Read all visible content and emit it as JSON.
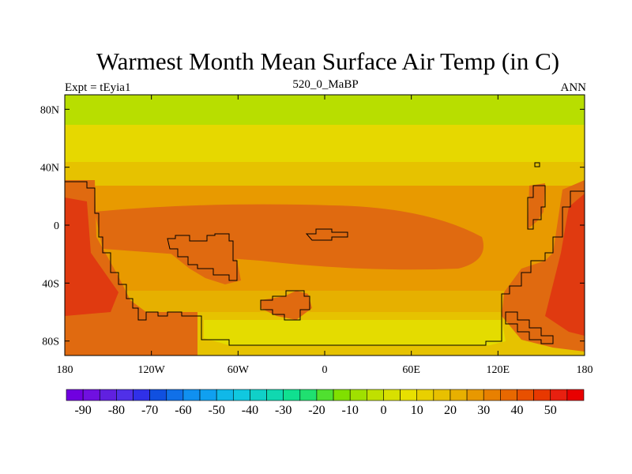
{
  "title": "Warmest Month Mean Surface Air Temp (in C)",
  "experiment_label": "Expt = tEyia1",
  "period_label": "520_0_MaBP",
  "season_label": "ANN",
  "map": {
    "lon_ticks": [
      "180",
      "120W",
      "60W",
      "0",
      "60E",
      "120E",
      "180"
    ],
    "lat_ticks": [
      "80N",
      "40N",
      "0",
      "40S",
      "80S"
    ]
  },
  "colorbar": {
    "labels": [
      "-90",
      "-80",
      "-70",
      "-60",
      "-50",
      "-40",
      "-30",
      "-20",
      "-10",
      "0",
      "10",
      "20",
      "30",
      "40",
      "50"
    ],
    "colors": [
      "#7000e0",
      "#7010e0",
      "#6020e0",
      "#5030e8",
      "#3030e8",
      "#1050e0",
      "#1070e8",
      "#1090f0",
      "#10a0f0",
      "#10b8e8",
      "#10c8e0",
      "#10d0c8",
      "#10d8b0",
      "#10e090",
      "#20e070",
      "#50e030",
      "#80e000",
      "#a0e000",
      "#c0e000",
      "#d8e000",
      "#e8e000",
      "#e8d000",
      "#e8c000",
      "#e8b000",
      "#e89800",
      "#e88000",
      "#e86800",
      "#e85000",
      "#e83800",
      "#e82010",
      "#e80000"
    ]
  },
  "colors": {
    "band_60n_plus": "#b8de00",
    "band_40n_60n": "#e6d800",
    "band_20n_40n": "#e6c200",
    "subtropics": "#e6b000",
    "tropics": "#e89a00",
    "land_hot": "#e06a10",
    "land_hottest": "#e03a10",
    "antarctic": "#e4dc00"
  }
}
